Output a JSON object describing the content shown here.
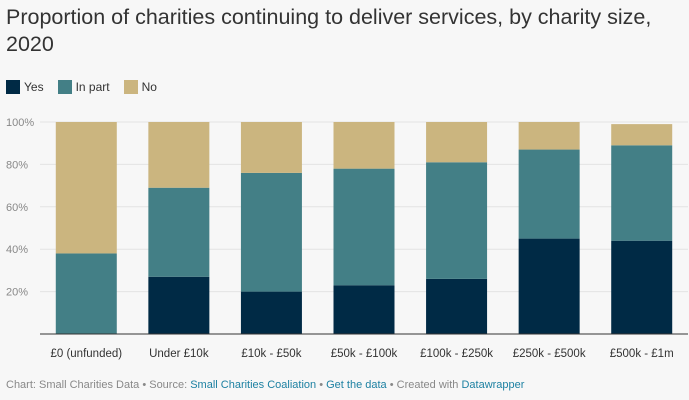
{
  "title": "Proportion of charities continuing to deliver services, by charity size, 2020",
  "legend": [
    {
      "label": "Yes",
      "color": "#002a45"
    },
    {
      "label": "In part",
      "color": "#437f86"
    },
    {
      "label": "No",
      "color": "#cbb57f"
    }
  ],
  "footer": {
    "chart_prefix": "Chart: Small Charities Data • Source: ",
    "source_link": "Small Charities Coaliation",
    "sep1": " • ",
    "data_link": "Get the data",
    "sep2": " • Created with ",
    "tool_link": "Datawrapper"
  },
  "chart_data": {
    "type": "bar",
    "stacked": true,
    "categories": [
      "£0 (unfunded)",
      "Under £10k",
      "£10k - £50k",
      "£50k - £100k",
      "£100k - £250k",
      "£250k - £500k",
      "£500k - £1m"
    ],
    "series": [
      {
        "name": "Yes",
        "color": "#002a45",
        "values": [
          0,
          27,
          20,
          23,
          26,
          45,
          44
        ]
      },
      {
        "name": "In part",
        "color": "#437f86",
        "values": [
          38,
          42,
          56,
          55,
          55,
          42,
          45
        ]
      },
      {
        "name": "No",
        "color": "#cbb57f",
        "values": [
          62,
          31,
          24,
          22,
          19,
          13,
          10
        ]
      }
    ],
    "yticks": [
      "20%",
      "40%",
      "60%",
      "80%",
      "100%"
    ],
    "ytick_values": [
      20,
      40,
      60,
      80,
      100
    ],
    "ylim": [
      0,
      100
    ],
    "grid": true
  }
}
